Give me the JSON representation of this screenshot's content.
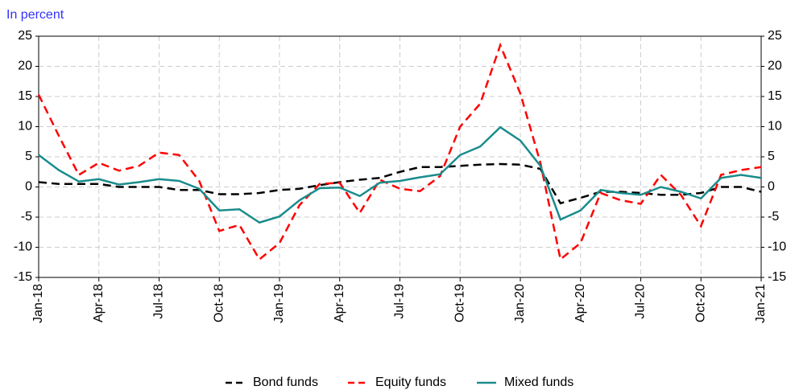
{
  "chart_data": {
    "type": "line",
    "subtitle": "In percent",
    "categories": [
      "Jan-18",
      null,
      null,
      "Apr-18",
      null,
      null,
      "Jul-18",
      null,
      null,
      "Oct-18",
      null,
      null,
      "Jan-19",
      null,
      null,
      "Apr-19",
      null,
      null,
      "Jul-19",
      null,
      null,
      "Oct-19",
      null,
      null,
      "Jan-20",
      null,
      null,
      "Apr-20",
      null,
      null,
      "Jul-20",
      null,
      null,
      "Oct-20",
      null,
      null,
      "Jan-21"
    ],
    "series": [
      {
        "name": "Bond funds",
        "color": "#000000",
        "dashed": true,
        "values": [
          0.8,
          0.5,
          0.5,
          0.5,
          0,
          0,
          0,
          -0.5,
          -0.5,
          -1.2,
          -1.2,
          -1,
          -0.5,
          -0.3,
          0.3,
          0.8,
          1.2,
          1.5,
          2.5,
          3.3,
          3.3,
          3.5,
          3.7,
          3.8,
          3.7,
          3,
          -2.7,
          -1.8,
          -0.8,
          -0.8,
          -1,
          -1.3,
          -1.3,
          -1,
          0,
          0,
          -0.8
        ]
      },
      {
        "name": "Equity funds",
        "color": "#ff0000",
        "dashed": true,
        "values": [
          15.3,
          8.5,
          2,
          4,
          2.7,
          3.5,
          5.7,
          5.3,
          1,
          -7.3,
          -6.3,
          -12,
          -9.3,
          -3,
          0.5,
          0.7,
          -4.3,
          1.2,
          -0.3,
          -0.7,
          1.8,
          10,
          13.8,
          23.5,
          15.5,
          4,
          -12,
          -9.3,
          -1,
          -2.2,
          -2.8,
          2,
          -1.3,
          -6.5,
          2,
          2.8,
          3.3
        ]
      },
      {
        "name": "Mixed funds",
        "color": "#1a8c8c",
        "dashed": false,
        "values": [
          5.3,
          2.8,
          0.9,
          1.3,
          0.4,
          0.8,
          1.3,
          1,
          -0.3,
          -3.9,
          -3.7,
          -5.9,
          -4.9,
          -2.2,
          -0.2,
          -0.1,
          -1.5,
          0.7,
          1,
          1.6,
          2.1,
          5.3,
          6.7,
          9.9,
          7.7,
          3.5,
          -5.4,
          -3.9,
          -0.5,
          -1,
          -1.3,
          0,
          -0.8,
          -1.9,
          1.5,
          2,
          1.5
        ]
      }
    ],
    "ylim": [
      -15,
      25
    ],
    "yticks": [
      -15,
      -10,
      -5,
      0,
      5,
      10,
      15,
      20,
      25
    ],
    "y2lim": [
      -15,
      25
    ],
    "y2ticks": [
      -15,
      -10,
      -5,
      0,
      5,
      10,
      15,
      20,
      25
    ],
    "grid": true,
    "legend": "bottom"
  }
}
